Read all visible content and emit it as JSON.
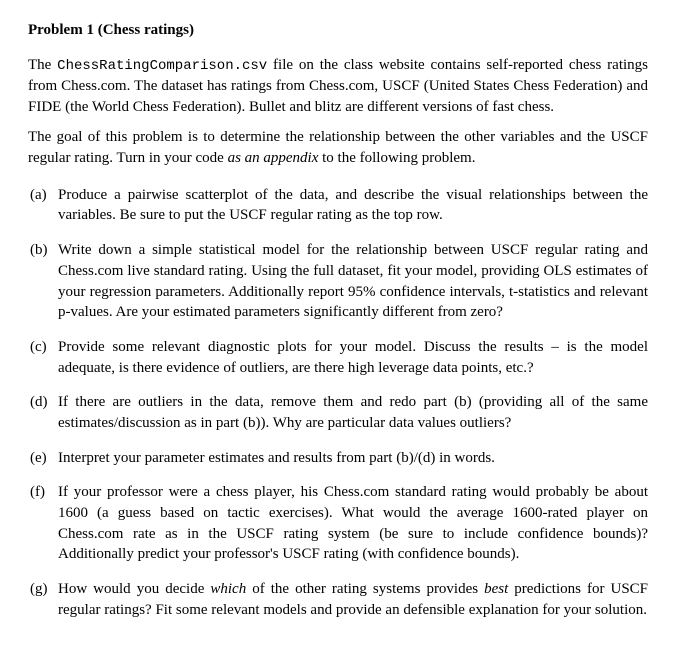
{
  "title": "Problem 1 (Chess ratings)",
  "intro": {
    "p1_pre": "The ",
    "p1_code": "ChessRatingComparison.csv",
    "p1_post": " file on the class website contains self-reported chess ratings from Chess.com. The dataset has ratings from Chess.com, USCF (United States Chess Federation) and FIDE (the World Chess Federation). Bullet and blitz are different versions of fast chess.",
    "p2_pre": "The goal of this problem is to determine the relationship between the other variables and the USCF regular rating. Turn in your code ",
    "p2_em": "as an appendix",
    "p2_post": " to the following problem."
  },
  "parts": {
    "a": {
      "label": "(a)",
      "text": "Produce a pairwise scatterplot of the data, and describe the visual relationships between the variables. Be sure to put the USCF regular rating as the top row."
    },
    "b": {
      "label": "(b)",
      "text": "Write down a simple statistical model for the relationship between USCF regular rating and Chess.com live standard rating. Using the full dataset, fit your model, providing OLS estimates of your regression parameters. Additionally report 95% confidence intervals, t-statistics and relevant p-values. Are your estimated parameters significantly different from zero?"
    },
    "c": {
      "label": "(c)",
      "text": "Provide some relevant diagnostic plots for your model. Discuss the results – is the model adequate, is there evidence of outliers, are there high leverage data points, etc.?"
    },
    "d": {
      "label": "(d)",
      "text": "If there are outliers in the data, remove them and redo part (b) (providing all of the same estimates/discussion as in part (b)). Why are particular data values outliers?"
    },
    "e": {
      "label": "(e)",
      "text": "Interpret your parameter estimates and results from part (b)/(d) in words."
    },
    "f": {
      "label": "(f)",
      "text": "If your professor were a chess player, his Chess.com standard rating would probably be about 1600 (a guess based on tactic exercises). What would the average 1600-rated player on Chess.com rate as in the USCF rating system (be sure to include confidence bounds)? Additionally predict your professor's USCF rating (with confidence bounds)."
    },
    "g": {
      "label": "(g)",
      "pre": "How would you decide ",
      "em1": "which",
      "mid": " of the other rating systems provides ",
      "em2": "best",
      "post": " predictions for USCF regular ratings? Fit some relevant models and provide an defensible explanation for your solution."
    }
  }
}
